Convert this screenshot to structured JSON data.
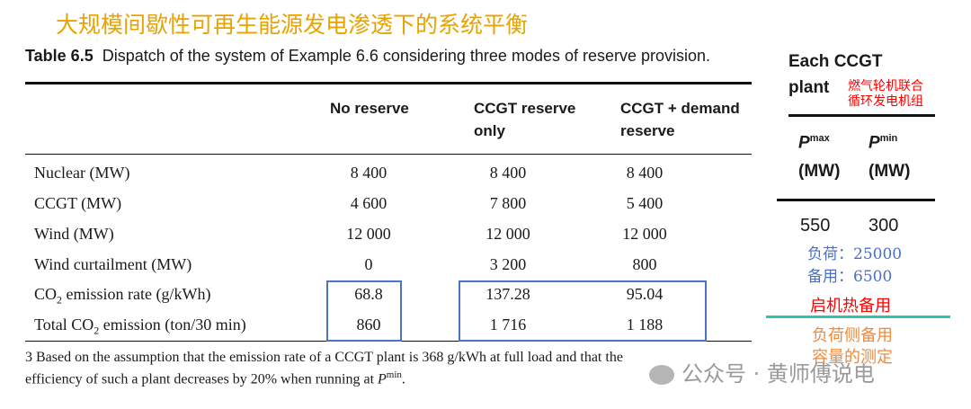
{
  "title": "大规模间歇性可再生能源发电渗透下的系统平衡",
  "table": {
    "caption_num": "Table 6.5",
    "caption": "Dispatch of the system of Example 6.6 considering three modes of reserve provision.",
    "columns": [
      "No reserve",
      "CCGT reserve only",
      "CCGT + demand reserve"
    ],
    "rows": [
      {
        "label": "Nuclear (MW)",
        "values": [
          "8 400",
          "8 400",
          "8 400"
        ]
      },
      {
        "label": "CCGT (MW)",
        "values": [
          "4 600",
          "7 800",
          "5 400"
        ]
      },
      {
        "label": "Wind (MW)",
        "values": [
          "12 000",
          "12 000",
          "12 000"
        ]
      },
      {
        "label": "Wind curtailment (MW)",
        "values": [
          "0",
          "3 200",
          "800"
        ]
      },
      {
        "label_pre": "CO",
        "label_sub": "2",
        "label_post": " emission rate (g/kWh)",
        "values": [
          "68.8",
          "137.28",
          "95.04"
        ]
      },
      {
        "label_pre": "Total CO",
        "label_sub": "2",
        "label_post": " emission (ton/30 min)",
        "values": [
          "860",
          "1 716",
          "1 188"
        ]
      }
    ],
    "footnote_line1": "3 Based on the assumption that the emission rate of a CCGT plant is 368 g/kWh at full load and that the",
    "footnote_line2_pre": "efficiency of such a plant decreases by 20% when running at ",
    "footnote_P": "P",
    "footnote_sup": "min",
    "footnote_end": "."
  },
  "side": {
    "heading1": "Each CCGT",
    "heading2": "plant",
    "note_red1": "燃气轮机联合",
    "note_red2": "循环发电机组",
    "pmax_P": "P",
    "pmax_sup": "max",
    "pmax_unit": "(MW)",
    "pmin_P": "P",
    "pmin_sup": "min",
    "pmin_unit": "(MW)",
    "pmax_value": "550",
    "pmin_value": "300",
    "load": "负荷：25000",
    "reserve": "备用：6500",
    "spinning": "启机热备用",
    "demand_side1": "负荷侧备用",
    "demand_side2": "容量的测定"
  },
  "watermark": "公众号 · 黄师傅说电",
  "colors": {
    "title": "#e8a300",
    "box": "#4a74c8",
    "red": "#ff0000",
    "blue": "#4a6fc8",
    "teal": "#2ec4b0",
    "orange": "#f08a3c"
  }
}
